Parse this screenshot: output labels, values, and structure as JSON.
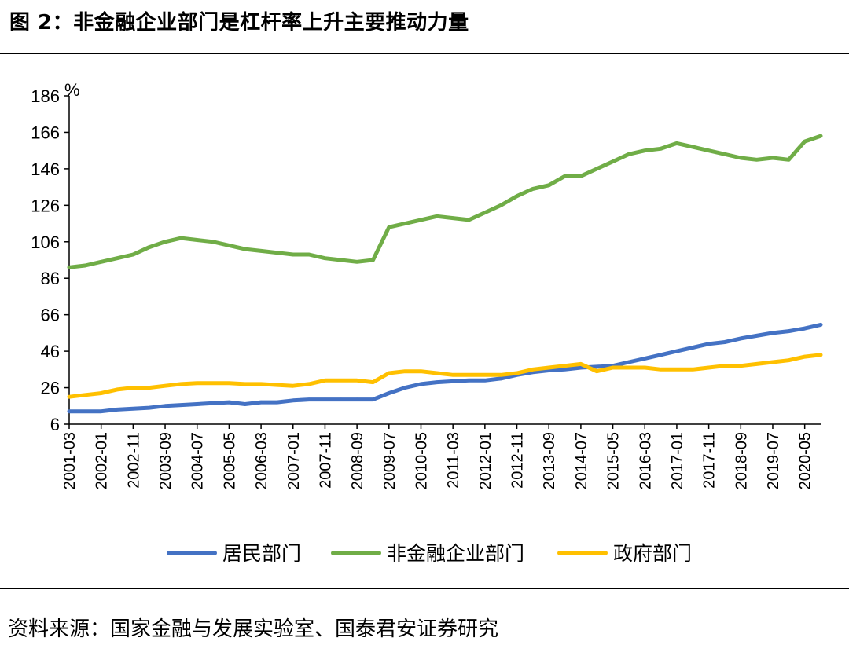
{
  "figure": {
    "title": "图 2：非金融企业部门是杠杆率上升主要推动力量",
    "source": "资料来源：国家金融与发展实验室、国泰君安证券研究"
  },
  "chart_data": {
    "type": "line",
    "title": "",
    "ylabel": "%",
    "xlabel": "",
    "ylim": [
      6,
      186
    ],
    "yticks": [
      6,
      26,
      46,
      66,
      86,
      106,
      126,
      146,
      166,
      186
    ],
    "grid": false,
    "legend_position": "bottom",
    "x": [
      "2001-03",
      "2001-08",
      "2002-01",
      "2002-06",
      "2002-11",
      "2003-04",
      "2003-09",
      "2004-02",
      "2004-07",
      "2004-12",
      "2005-05",
      "2005-10",
      "2006-03",
      "2006-08",
      "2007-01",
      "2007-06",
      "2007-11",
      "2008-04",
      "2008-09",
      "2009-02",
      "2009-07",
      "2009-12",
      "2010-05",
      "2010-10",
      "2011-03",
      "2011-08",
      "2012-01",
      "2012-06",
      "2012-11",
      "2013-04",
      "2013-09",
      "2014-02",
      "2014-07",
      "2014-12",
      "2015-05",
      "2015-10",
      "2016-03",
      "2016-08",
      "2017-01",
      "2017-06",
      "2017-11",
      "2018-04",
      "2018-09",
      "2019-02",
      "2019-07",
      "2019-12",
      "2020-05",
      "2020-06"
    ],
    "xticks": [
      "2001-03",
      "2002-01",
      "2002-11",
      "2003-09",
      "2004-07",
      "2005-05",
      "2006-03",
      "2007-01",
      "2007-11",
      "2008-09",
      "2009-07",
      "2010-05",
      "2011-03",
      "2012-01",
      "2012-11",
      "2013-09",
      "2014-07",
      "2015-05",
      "2016-03",
      "2017-01",
      "2017-11",
      "2018-09",
      "2019-07",
      "2020-05"
    ],
    "series": [
      {
        "name": "居民部门",
        "color": "#4472C4",
        "values": [
          13,
          13,
          13,
          14,
          14.5,
          15,
          16,
          16.5,
          17,
          17.5,
          18,
          17,
          18,
          18,
          19,
          19.5,
          19.5,
          19.5,
          19.5,
          19.5,
          23,
          26,
          28,
          29,
          29.5,
          30,
          30,
          31,
          33,
          34.5,
          35.5,
          36,
          37,
          37.5,
          38,
          40,
          42,
          44,
          46,
          48,
          50,
          51,
          53,
          54.5,
          56,
          57,
          58.5,
          60.5
        ]
      },
      {
        "name": "非金融企业部门",
        "color": "#70AD47",
        "values": [
          92,
          93,
          95,
          97,
          99,
          103,
          106,
          108,
          107,
          106,
          104,
          102,
          101,
          100,
          99,
          99,
          97,
          96,
          95,
          96,
          114,
          116,
          118,
          120,
          119,
          118,
          122,
          126,
          131,
          135,
          137,
          142,
          142,
          146,
          150,
          154,
          156,
          157,
          160,
          158,
          156,
          154,
          152,
          151,
          152,
          151,
          161,
          164
        ]
      },
      {
        "name": "政府部门",
        "color": "#FFC000",
        "values": [
          21,
          22,
          23,
          25,
          26,
          26,
          27,
          28,
          28.5,
          28.5,
          28.5,
          28,
          28,
          27.5,
          27,
          28,
          30,
          30,
          30,
          29,
          34,
          35,
          35,
          34,
          33,
          33,
          33,
          33,
          34,
          36,
          37,
          38,
          39,
          35,
          37,
          37,
          37,
          36,
          36,
          36,
          37,
          38,
          38,
          39,
          40,
          41,
          43,
          44
        ]
      }
    ]
  }
}
